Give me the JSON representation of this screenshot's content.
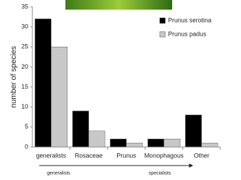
{
  "chart_data": {
    "type": "bar",
    "y_label": "number of species",
    "categories": [
      "generalists",
      "Rosaceae",
      "Prunus",
      "Monophagous",
      "Other"
    ],
    "series": [
      {
        "name": "Prunus serotina",
        "color": "#000000",
        "values": [
          32,
          9,
          2,
          2,
          8
        ]
      },
      {
        "name": "Prunus padus",
        "color": "#c8c8c8",
        "values": [
          25,
          4,
          1,
          2,
          1
        ]
      }
    ],
    "ylim": [
      0,
      35
    ],
    "yticks": [
      0,
      5,
      10,
      15,
      20,
      25,
      30,
      35
    ],
    "grid": false,
    "legend": "upper right",
    "annotations": [
      "generalists",
      "specialists"
    ]
  }
}
